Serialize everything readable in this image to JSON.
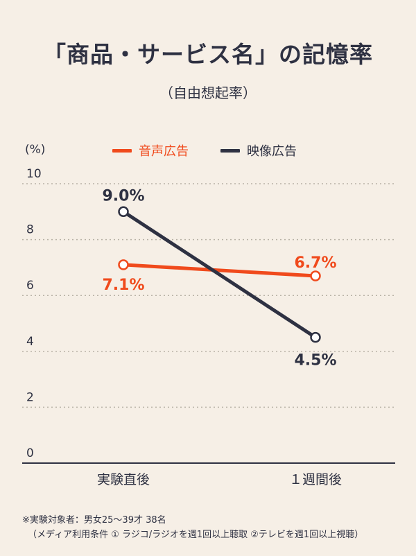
{
  "header": {
    "title": "「商品・サービス名」の記憶率",
    "subtitle": "（自由想起率）"
  },
  "chart_data": {
    "type": "line",
    "ylabel": "(%)",
    "ylim": [
      0,
      10
    ],
    "yticks": [
      0,
      2,
      4,
      6,
      8,
      10
    ],
    "grid": true,
    "legend_position": "top-center",
    "categories": [
      "実験直後",
      "１週間後"
    ],
    "series": [
      {
        "name": "音声広告",
        "color": "#f04a1c",
        "values": [
          7.1,
          6.7
        ],
        "labels": [
          "7.1%",
          "6.7%"
        ]
      },
      {
        "name": "映像広告",
        "color": "#2e3142",
        "values": [
          9.0,
          4.5
        ],
        "labels": [
          "9.0%",
          "4.5%"
        ]
      }
    ]
  },
  "footnote": {
    "line1": "※実験対象者：男女25～39才 38名",
    "line2": "（メディア利用条件 ① ラジコ/ラジオを週1回以上聴取 ②テレビを週1回以上視聴）"
  }
}
